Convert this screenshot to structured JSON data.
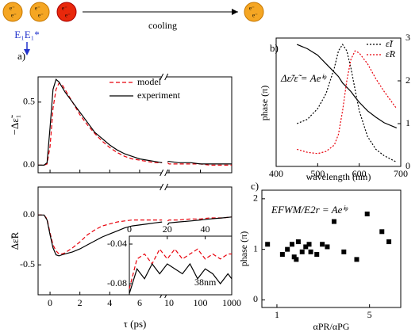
{
  "schematic": {
    "electron": "e⁻",
    "process": "cooling",
    "probe": "E₁E₁*"
  },
  "chart_data": [
    {
      "type": "line",
      "panel_label": "a)",
      "ylabel": "−Δε̃₁",
      "xlim": [
        -0.8,
        1000
      ],
      "xbreak": [
        7.5,
        8
      ],
      "xlog_after_break": true,
      "ylim": [
        -0.06,
        0.7
      ],
      "yticks": [
        {
          "value": 0,
          "label": "0.0"
        },
        0.5
      ],
      "legend": "upper right",
      "x": [
        -0.8,
        -0.4,
        -0.2,
        0,
        0.2,
        0.4,
        0.6,
        0.8,
        1,
        1.5,
        2,
        2.5,
        3,
        3.5,
        4,
        4.5,
        5,
        5.5,
        6,
        6.5,
        7,
        7.5,
        8,
        9,
        10,
        20,
        50,
        100,
        200,
        500,
        1000
      ],
      "series": [
        {
          "name": "model",
          "color": "#e8000b",
          "dash": true,
          "values": [
            0,
            0,
            0.01,
            0.15,
            0.45,
            0.6,
            0.65,
            0.64,
            0.6,
            0.5,
            0.4,
            0.32,
            0.25,
            0.19,
            0.14,
            0.1,
            0.07,
            0.05,
            0.04,
            0.03,
            0.02,
            0.02,
            null,
            0.02,
            0.01,
            0.01,
            0.01,
            0.01,
            0,
            0,
            0
          ]
        },
        {
          "name": "experiment",
          "color": "#000000",
          "values": [
            0,
            0,
            0.02,
            0.3,
            0.6,
            0.68,
            0.66,
            0.62,
            0.58,
            0.5,
            0.42,
            0.34,
            0.26,
            0.21,
            0.16,
            0.12,
            0.09,
            0.07,
            0.05,
            0.04,
            0.03,
            0.02,
            null,
            0.03,
            0.03,
            0.02,
            0.02,
            0.01,
            0.01,
            0.01,
            0.01
          ]
        }
      ]
    },
    {
      "type": "line",
      "ylabel": "Δε̃R",
      "xlabel": "τ (ps)",
      "xlim": [
        -0.8,
        1000
      ],
      "xbreak": [
        7.5,
        8
      ],
      "xlog_after_break": true,
      "xticks": [
        0,
        2,
        4,
        6,
        10,
        100,
        1000
      ],
      "ylim": [
        -0.8,
        0.28
      ],
      "yticks": [
        {
          "value": 0,
          "label": "0.0"
        },
        -0.5
      ],
      "x": [
        -0.8,
        -0.4,
        -0.2,
        0,
        0.2,
        0.4,
        0.6,
        0.8,
        1,
        1.5,
        2,
        2.5,
        3,
        3.5,
        4,
        4.5,
        5,
        5.5,
        6,
        6.5,
        7,
        7.5,
        8,
        9,
        10,
        20,
        50,
        100,
        200,
        500,
        1000
      ],
      "series": [
        {
          "color": "#e8000b",
          "dash": true,
          "values": [
            0,
            0,
            -0.04,
            -0.18,
            -0.3,
            -0.36,
            -0.39,
            -0.39,
            -0.38,
            -0.33,
            -0.27,
            -0.2,
            -0.15,
            -0.11,
            -0.09,
            -0.07,
            -0.06,
            -0.05,
            -0.05,
            -0.05,
            -0.05,
            -0.05,
            null,
            -0.06,
            -0.05,
            -0.05,
            -0.04,
            -0.04,
            -0.03,
            -0.03,
            -0.02
          ]
        },
        {
          "color": "#000000",
          "values": [
            0,
            0,
            -0.05,
            -0.2,
            -0.33,
            -0.4,
            -0.41,
            -0.4,
            -0.39,
            -0.37,
            -0.34,
            -0.3,
            -0.26,
            -0.22,
            -0.19,
            -0.16,
            -0.13,
            -0.11,
            -0.1,
            -0.09,
            -0.08,
            -0.07,
            null,
            -0.1,
            -0.08,
            -0.07,
            -0.06,
            -0.05,
            -0.04,
            -0.03,
            -0.02
          ]
        }
      ]
    },
    {
      "type": "line",
      "annotation": "38nm",
      "xlim": [
        0,
        54
      ],
      "xticks": [
        0,
        20,
        40
      ],
      "ylim": [
        -0.0912,
        -0.032
      ],
      "yticks": [
        -0.04,
        -0.08
      ],
      "x": [
        0,
        4,
        8,
        12,
        16,
        20,
        24,
        28,
        32,
        36,
        40,
        44,
        48,
        52,
        54
      ],
      "series": [
        {
          "color": "#e8000b",
          "dash": true,
          "values": [
            -0.085,
            -0.055,
            -0.05,
            -0.06,
            -0.045,
            -0.055,
            -0.045,
            -0.055,
            -0.05,
            -0.045,
            -0.055,
            -0.05,
            -0.055,
            -0.05,
            -0.05
          ]
        },
        {
          "color": "#000000",
          "values": [
            -0.09,
            -0.065,
            -0.075,
            -0.06,
            -0.07,
            -0.06,
            -0.065,
            -0.07,
            -0.06,
            -0.075,
            -0.065,
            -0.07,
            -0.08,
            -0.07,
            -0.075
          ]
        }
      ]
    },
    {
      "type": "line",
      "panel_label": "b)",
      "xlabel": "wavelength (nm)",
      "ylabel": "phase (π)",
      "annotation": "Δε̃/ε̃ = Aeⁱᵠ",
      "xlim": [
        400,
        700
      ],
      "xticks": [
        400,
        500,
        600,
        700
      ],
      "ylim": [
        0,
        3
      ],
      "y2lim": [
        0,
        3
      ],
      "y2ticks": [
        0,
        1,
        2,
        3
      ],
      "legend": "upper right",
      "x": [
        450,
        475,
        500,
        520,
        540,
        550,
        560,
        570,
        580,
        590,
        600,
        620,
        640,
        660,
        690
      ],
      "series": [
        {
          "color": "#000000",
          "values": [
            2.85,
            2.75,
            2.6,
            2.4,
            2.2,
            2.1,
            1.95,
            1.85,
            1.75,
            1.62,
            1.5,
            1.3,
            1.15,
            1.02,
            0.9
          ]
        },
        {
          "name": "ε̃I",
          "color": "#000000",
          "dotted": true,
          "axis": "y2",
          "values": [
            1.0,
            1.1,
            1.35,
            1.7,
            2.3,
            2.7,
            2.85,
            2.7,
            2.3,
            1.8,
            1.3,
            0.7,
            0.4,
            0.25,
            0.1
          ]
        },
        {
          "name": "ε̃R",
          "color": "#e8000b",
          "dotted": true,
          "axis": "y2",
          "values": [
            0.4,
            0.33,
            0.3,
            0.35,
            0.5,
            0.75,
            1.3,
            2.0,
            2.5,
            2.7,
            2.65,
            2.4,
            2.05,
            1.75,
            1.35
          ]
        }
      ]
    },
    {
      "type": "scatter",
      "panel_label": "c)",
      "xlabel": "αPR/αPG",
      "ylabel": "phase (π)",
      "annotation": "EFWM/E2r = Aeⁱᵠ",
      "xlog": true,
      "xlim": [
        0.77,
        8.6
      ],
      "xticks": [
        1,
        5
      ],
      "ylim": [
        -0.15,
        2.17
      ],
      "yticks": [
        0,
        1,
        2
      ],
      "color": "#000000",
      "x": [
        0.85,
        1.1,
        1.2,
        1.3,
        1.35,
        1.4,
        1.45,
        1.55,
        1.65,
        1.75,
        1.8,
        2.0,
        2.2,
        2.4,
        2.7,
        3.2,
        4.0,
        4.8,
        6.2,
        7.0
      ],
      "values": [
        1.1,
        0.9,
        1.0,
        1.1,
        0.85,
        0.8,
        1.15,
        0.95,
        1.05,
        1.1,
        0.95,
        0.9,
        1.1,
        1.05,
        1.55,
        0.95,
        0.8,
        1.7,
        1.35,
        1.15
      ]
    }
  ]
}
